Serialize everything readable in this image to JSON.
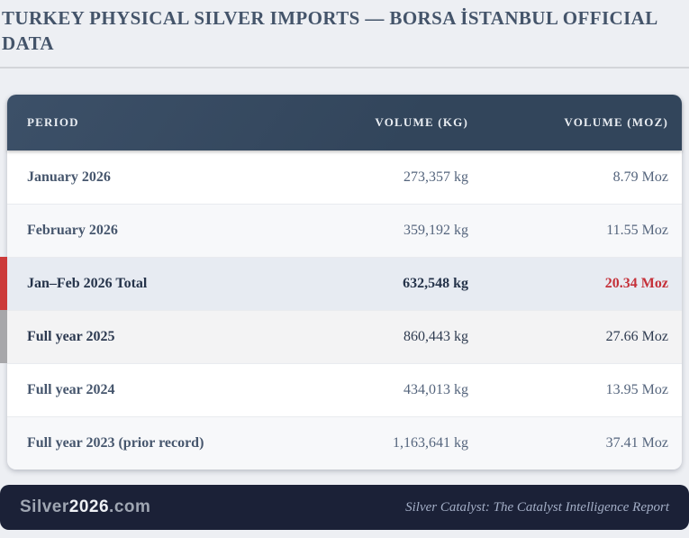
{
  "page": {
    "title": "TURKEY PHYSICAL SILVER IMPORTS — BORSA İSTANBUL OFFICIAL DATA"
  },
  "table": {
    "columns": [
      "PERIOD",
      "VOLUME (KG)",
      "VOLUME (MOZ)"
    ],
    "rows": [
      {
        "period": "January 2026",
        "kg": "273,357 kg",
        "moz": "8.79 Moz",
        "variant": ""
      },
      {
        "period": "February 2026",
        "kg": "359,192 kg",
        "moz": "11.55 Moz",
        "variant": "alt"
      },
      {
        "period": "Jan–Feb 2026 Total",
        "kg": "632,548 kg",
        "moz": "20.34 Moz",
        "variant": "record"
      },
      {
        "period": "Full year 2025",
        "kg": "860,443 kg",
        "moz": "27.66 Moz",
        "variant": "silver"
      },
      {
        "period": "Full year 2024",
        "kg": "434,013 kg",
        "moz": "13.95 Moz",
        "variant": ""
      },
      {
        "period": "Full year 2023 (prior record)",
        "kg": "1,163,641 kg",
        "moz": "37.41 Moz",
        "variant": "alt"
      }
    ]
  },
  "footer": {
    "brand": {
      "prefix": "Silver",
      "year": "2026",
      "suffix": ".com"
    },
    "tagline": "Silver Catalyst: The Catalyst Intelligence Report"
  },
  "colors": {
    "page_bg": "#edeff3",
    "title_color": "#44546a",
    "header_bg": "#32455b",
    "header_text": "#e9edf2",
    "period_color": "#46566d",
    "row_text": "#55657d",
    "record_bg": "#e7ebf2",
    "record_red": "#c5313a",
    "accent_red": "#cc3a3a",
    "silver_bg": "#f3f3f4",
    "accent_silver": "#a7a7aa",
    "footer_bg": "#1b2137",
    "brand_gray": "#9fa6b2",
    "brand_white": "#eef0f4",
    "tagline_color": "#a3aec6"
  },
  "chart_data": {
    "type": "table",
    "title": "TURKEY PHYSICAL SILVER IMPORTS — BORSA İSTANBUL OFFICIAL DATA",
    "columns": [
      "Period",
      "Volume (kg)",
      "Volume (Moz)"
    ],
    "rows": [
      [
        "January 2026",
        273357,
        8.79
      ],
      [
        "February 2026",
        359192,
        11.55
      ],
      [
        "Jan–Feb 2026 Total",
        632548,
        20.34
      ],
      [
        "Full year 2025",
        860443,
        27.66
      ],
      [
        "Full year 2024",
        434013,
        13.95
      ],
      [
        "Full year 2023 (prior record)",
        1163641,
        37.41
      ]
    ],
    "highlighted_row": "Jan–Feb 2026 Total",
    "source_brand": "Silver2026.com"
  }
}
